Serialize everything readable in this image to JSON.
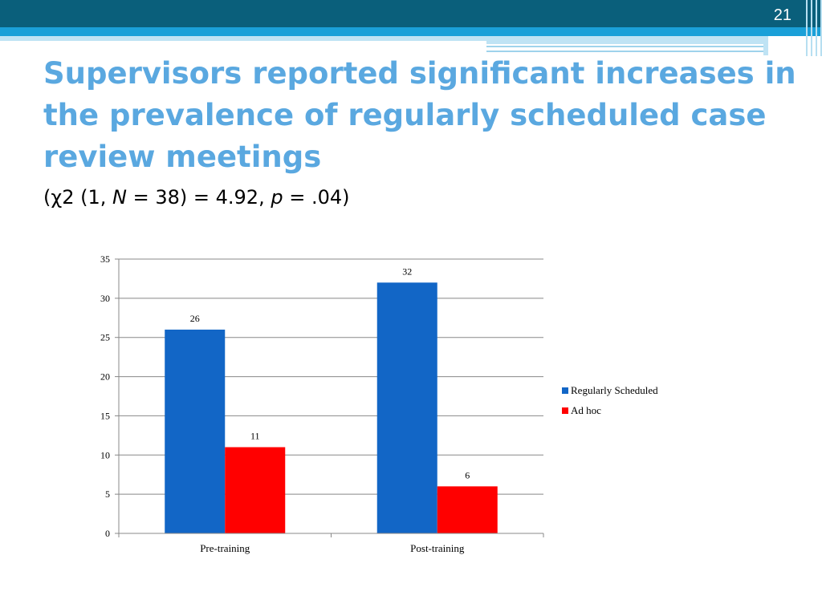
{
  "slide": {
    "number": "21",
    "title": "Supervisors reported significant increases in the prevalence of regularly scheduled case review meetings",
    "stat": {
      "open": "(",
      "chi": "χ",
      "p1": "2 (1, ",
      "n_symbol": "N",
      "p2": " = 38) = 4.92, ",
      "p_symbol": "p",
      "p3": " = .04)"
    }
  },
  "colors": {
    "title": "#5aa8e0",
    "regularly_scheduled": "#1266c6",
    "ad_hoc": "#ff0000",
    "grid": "#888888"
  },
  "chart_data": {
    "type": "bar",
    "categories": [
      "Pre-training",
      "Post-training"
    ],
    "series": [
      {
        "name": "Regularly Scheduled",
        "values": [
          26,
          32
        ]
      },
      {
        "name": "Ad hoc",
        "values": [
          11,
          6
        ]
      }
    ],
    "ylim": [
      0,
      35
    ],
    "yticks": [
      0,
      5,
      10,
      15,
      20,
      25,
      30,
      35
    ],
    "grid": true,
    "legend": "right"
  }
}
